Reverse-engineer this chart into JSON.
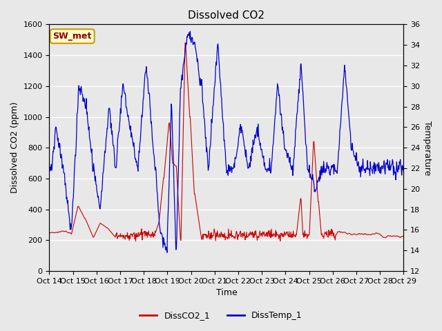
{
  "title": "Dissolved CO2",
  "xlabel": "Time",
  "ylabel_left": "Dissolved CO2 (ppm)",
  "ylabel_right": "Temperature",
  "ylim_left": [
    0,
    1600
  ],
  "ylim_right": [
    12,
    36
  ],
  "x_tick_labels": [
    "Oct 14",
    "Oct 15",
    "Oct 16",
    "Oct 17",
    "Oct 18",
    "Oct 19",
    "Oct 20",
    "Oct 21",
    "Oct 22",
    "Oct 23",
    "Oct 24",
    "Oct 25",
    "Oct 26",
    "Oct 27",
    "Oct 28",
    "Oct 29"
  ],
  "co2_color": "#cc0000",
  "temp_color": "#0000cc",
  "background_color": "#e8e8e8",
  "legend_label_co2": "DissCO2_1",
  "legend_label_temp": "DissTemp_1",
  "annotation_text": "SW_met",
  "annotation_bg": "#ffffcc",
  "annotation_border": "#cc9900",
  "annotation_text_color": "#8b0000",
  "yticks_left": [
    0,
    200,
    400,
    600,
    800,
    1000,
    1200,
    1400,
    1600
  ],
  "yticks_right": [
    12,
    14,
    16,
    18,
    20,
    22,
    24,
    26,
    28,
    30,
    32,
    34,
    36
  ]
}
